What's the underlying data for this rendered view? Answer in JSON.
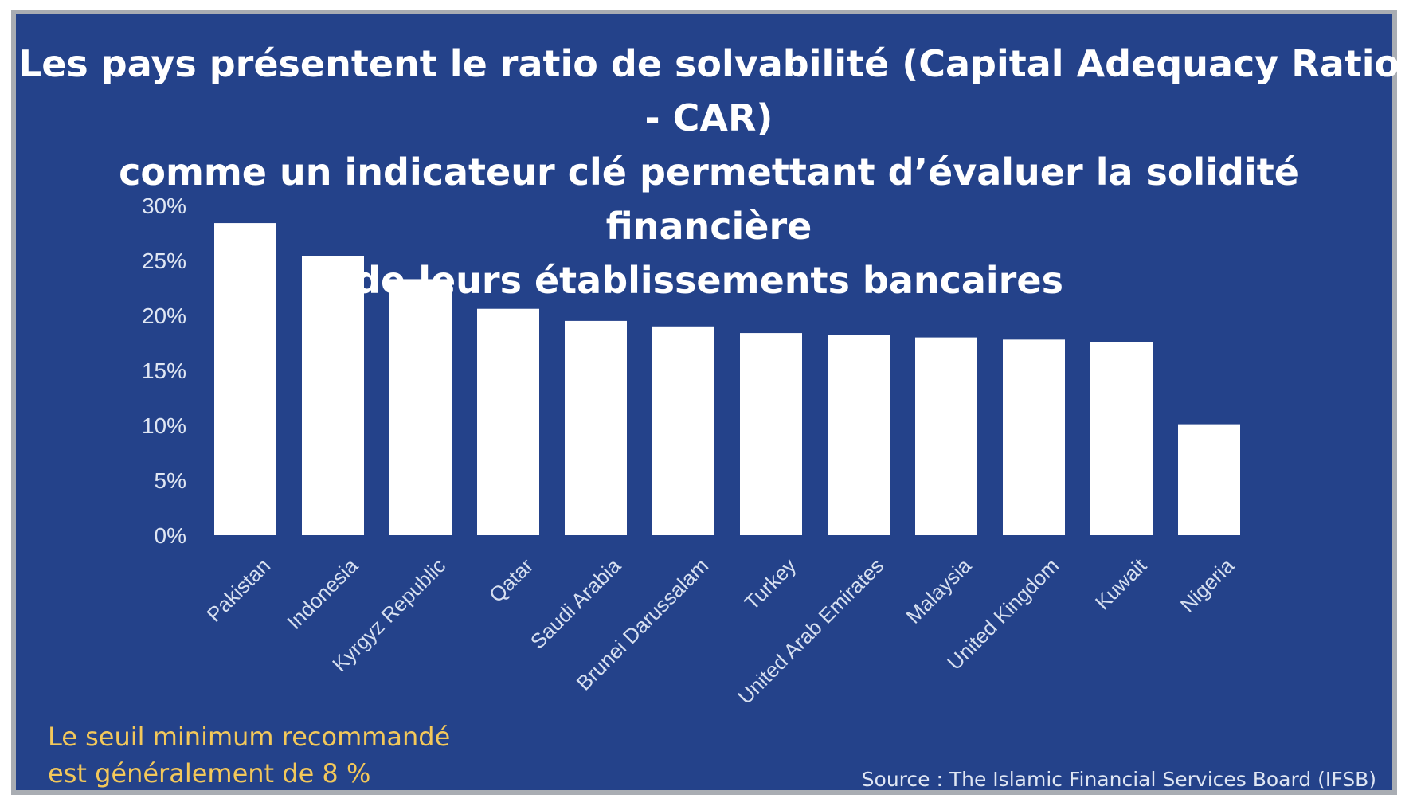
{
  "chart_data": {
    "type": "bar",
    "title": [
      "Les pays présentent le ratio de solvabilité (Capital Adequacy Ratio - CAR)",
      "comme un indicateur clé permettant d’évaluer la solidité financière",
      "de leurs établissements bancaires"
    ],
    "categories": [
      "Pakistan",
      "Indonesia",
      "Kyrgyz Republic",
      "Qatar",
      "Saudi Arabia",
      "Brunei Darussalam",
      "Turkey",
      "United Arab Emirates",
      "Malaysia",
      "United Kingdom",
      "Kuwait",
      "Nigeria"
    ],
    "values": [
      28.4,
      25.4,
      23.3,
      20.6,
      19.5,
      19.0,
      18.4,
      18.2,
      18.0,
      17.8,
      17.6,
      10.1
    ],
    "ylim": [
      0,
      30
    ],
    "yticks": [
      "0%",
      "5%",
      "10%",
      "15%",
      "20%",
      "25%",
      "30%"
    ],
    "ytick_values": [
      0,
      5,
      10,
      15,
      20,
      25,
      30
    ],
    "xlabel": "",
    "ylabel": "",
    "grid": false,
    "legend": "none",
    "bar_color": "#ffffff",
    "background_color": "#24428a"
  },
  "note": {
    "line1": "Le seuil minimum recommandé",
    "line2": "est généralement de 8 %",
    "color": "#f3c85a"
  },
  "source": "Source : The Islamic Financial Services Board (IFSB)"
}
